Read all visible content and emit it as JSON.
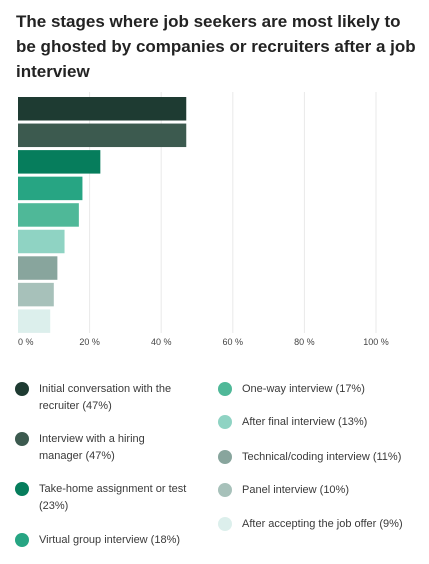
{
  "title": "The stages where job seekers are most likely to be ghosted by companies or recruiters after a job interview",
  "chart_data": {
    "type": "bar",
    "orientation": "horizontal",
    "categories": [
      "Initial conversation with the recruiter",
      "Interview with a hiring manager",
      "Take-home assignment or test",
      "Virtual group interview",
      "One-way interview",
      "After final interview",
      "Technical/coding interview",
      "Panel interview",
      "After accepting the job offer"
    ],
    "values": [
      47,
      47,
      23,
      18,
      17,
      13,
      11,
      10,
      9
    ],
    "colors": [
      "#1e3b32",
      "#3c5a4f",
      "#067d5c",
      "#27a583",
      "#4fb898",
      "#8fd3c3",
      "#88a59d",
      "#a7c1ba",
      "#dcefec"
    ],
    "xlim": [
      0,
      100
    ],
    "x_ticks": [
      "0 %",
      "20 %",
      "40 %",
      "60 %",
      "80 %",
      "100 %"
    ],
    "grid": true,
    "legend": [
      {
        "label": "Initial conversation with the recruiter (47%)",
        "color": "#1e3b32"
      },
      {
        "label": "Interview with a hiring manager (47%)",
        "color": "#3c5a4f"
      },
      {
        "label": "Take-home assignment or test (23%)",
        "color": "#067d5c"
      },
      {
        "label": "Virtual group interview (18%)",
        "color": "#27a583"
      },
      {
        "label": "One-way interview (17%)",
        "color": "#4fb898"
      },
      {
        "label": "After final interview (13%)",
        "color": "#8fd3c3"
      },
      {
        "label": "Technical/coding interview (11%)",
        "color": "#88a59d"
      },
      {
        "label": "Panel interview (10%)",
        "color": "#a7c1ba"
      },
      {
        "label": "After accepting the job offer (9%)",
        "color": "#dcefec"
      }
    ],
    "legend_placement": "bottom"
  }
}
